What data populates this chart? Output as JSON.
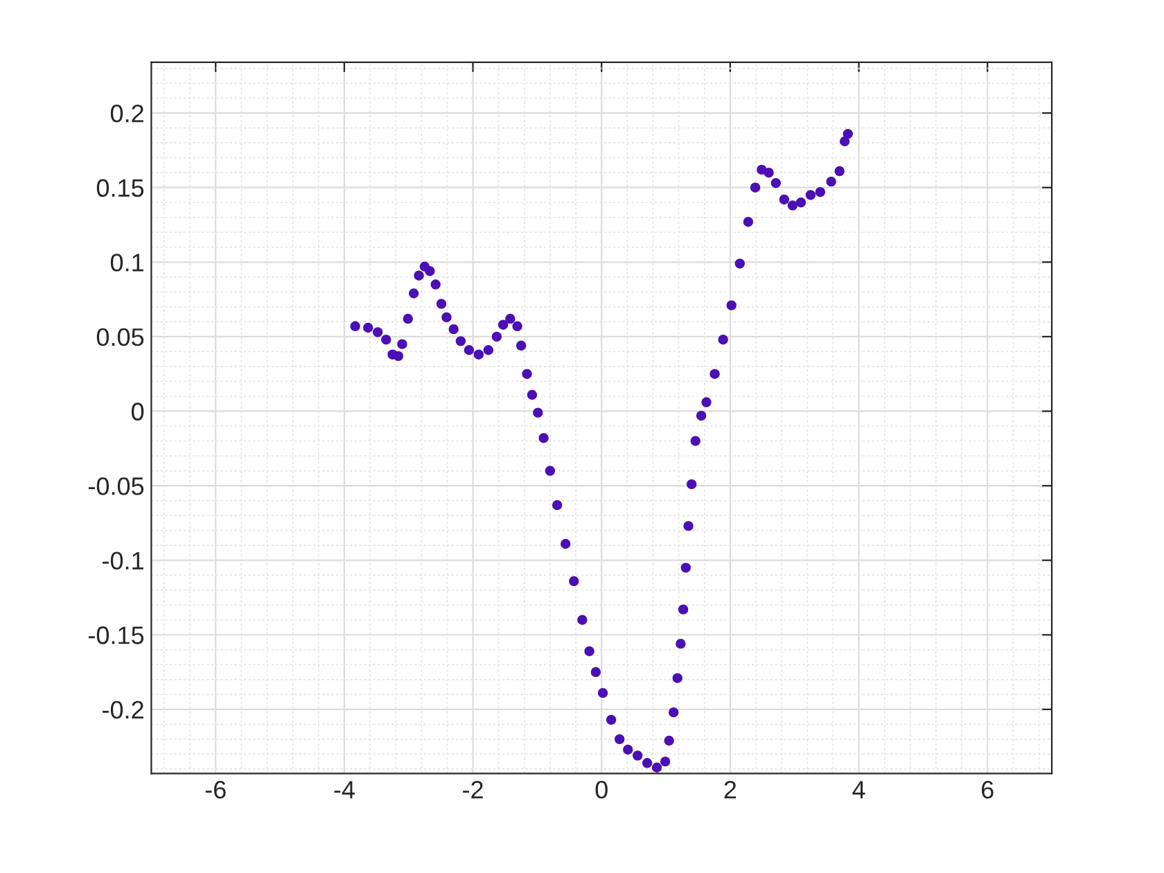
{
  "chart_data": {
    "type": "scatter",
    "xlim": [
      -7,
      7
    ],
    "xticks": [
      -6,
      -4,
      -2,
      0,
      2,
      4,
      6
    ],
    "ylim": [
      -0.243,
      0.234
    ],
    "yticks": [
      -0.2,
      -0.15,
      -0.1,
      -0.05,
      0,
      0.05,
      0.1,
      0.15,
      0.2
    ],
    "grid": true,
    "marker": "circle",
    "series": [
      {
        "color": "#4b0fb5",
        "x": [
          -3.83,
          -3.63,
          -3.48,
          -3.35,
          -3.25,
          -3.16,
          -3.1,
          -3.01,
          -2.92,
          -2.84,
          -2.75,
          -2.67,
          -2.58,
          -2.49,
          -2.41,
          -2.3,
          -2.19,
          -2.06,
          -1.91,
          -1.76,
          -1.63,
          -1.53,
          -1.42,
          -1.31,
          -1.25,
          -1.16,
          -1.08,
          -0.99,
          -0.9,
          -0.8,
          -0.69,
          -0.56,
          -0.43,
          -0.3,
          -0.19,
          -0.09,
          0.02,
          0.15,
          0.28,
          0.41,
          0.56,
          0.71,
          0.86,
          0.99,
          1.05,
          1.12,
          1.18,
          1.23,
          1.27,
          1.31,
          1.35,
          1.4,
          1.46,
          1.55,
          1.63,
          1.76,
          1.89,
          2.02,
          2.15,
          2.28,
          2.39,
          2.49,
          2.6,
          2.71,
          2.84,
          2.97,
          3.1,
          3.25,
          3.4,
          3.57,
          3.7,
          3.78,
          3.83
        ],
        "values": [
          0.057,
          0.056,
          0.053,
          0.048,
          0.038,
          0.037,
          0.045,
          0.062,
          0.079,
          0.091,
          0.097,
          0.094,
          0.085,
          0.072,
          0.063,
          0.055,
          0.047,
          0.041,
          0.038,
          0.041,
          0.05,
          0.058,
          0.062,
          0.057,
          0.044,
          0.025,
          0.011,
          -0.001,
          -0.018,
          -0.04,
          -0.063,
          -0.089,
          -0.114,
          -0.14,
          -0.161,
          -0.175,
          -0.189,
          -0.207,
          -0.22,
          -0.227,
          -0.231,
          -0.236,
          -0.239,
          -0.235,
          -0.221,
          -0.202,
          -0.179,
          -0.156,
          -0.133,
          -0.105,
          -0.077,
          -0.049,
          -0.02,
          -0.003,
          0.006,
          0.025,
          0.048,
          0.071,
          0.099,
          0.127,
          0.15,
          0.162,
          0.16,
          0.153,
          0.142,
          0.138,
          0.14,
          0.145,
          0.147,
          0.154,
          0.161,
          0.181,
          0.186
        ]
      }
    ]
  }
}
